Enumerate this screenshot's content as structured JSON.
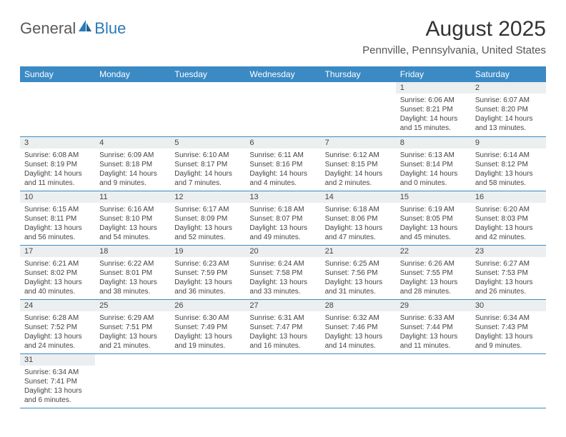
{
  "logo": {
    "general": "General",
    "blue": "Blue"
  },
  "title": "August 2025",
  "location": "Pennville, Pennsylvania, United States",
  "colors": {
    "header_bg": "#3b8ac4",
    "header_text": "#ffffff",
    "daynum_bg": "#eceff0",
    "row_border": "#3b8ac4",
    "text": "#444444",
    "logo_gray": "#5a5a5a",
    "logo_blue": "#2a7ab8"
  },
  "weekdays": [
    "Sunday",
    "Monday",
    "Tuesday",
    "Wednesday",
    "Thursday",
    "Friday",
    "Saturday"
  ],
  "weeks": [
    [
      null,
      null,
      null,
      null,
      null,
      {
        "d": "1",
        "sunrise": "6:06 AM",
        "sunset": "8:21 PM",
        "day1": "Daylight: 14 hours",
        "day2": "and 15 minutes."
      },
      {
        "d": "2",
        "sunrise": "6:07 AM",
        "sunset": "8:20 PM",
        "day1": "Daylight: 14 hours",
        "day2": "and 13 minutes."
      }
    ],
    [
      {
        "d": "3",
        "sunrise": "6:08 AM",
        "sunset": "8:19 PM",
        "day1": "Daylight: 14 hours",
        "day2": "and 11 minutes."
      },
      {
        "d": "4",
        "sunrise": "6:09 AM",
        "sunset": "8:18 PM",
        "day1": "Daylight: 14 hours",
        "day2": "and 9 minutes."
      },
      {
        "d": "5",
        "sunrise": "6:10 AM",
        "sunset": "8:17 PM",
        "day1": "Daylight: 14 hours",
        "day2": "and 7 minutes."
      },
      {
        "d": "6",
        "sunrise": "6:11 AM",
        "sunset": "8:16 PM",
        "day1": "Daylight: 14 hours",
        "day2": "and 4 minutes."
      },
      {
        "d": "7",
        "sunrise": "6:12 AM",
        "sunset": "8:15 PM",
        "day1": "Daylight: 14 hours",
        "day2": "and 2 minutes."
      },
      {
        "d": "8",
        "sunrise": "6:13 AM",
        "sunset": "8:14 PM",
        "day1": "Daylight: 14 hours",
        "day2": "and 0 minutes."
      },
      {
        "d": "9",
        "sunrise": "6:14 AM",
        "sunset": "8:12 PM",
        "day1": "Daylight: 13 hours",
        "day2": "and 58 minutes."
      }
    ],
    [
      {
        "d": "10",
        "sunrise": "6:15 AM",
        "sunset": "8:11 PM",
        "day1": "Daylight: 13 hours",
        "day2": "and 56 minutes."
      },
      {
        "d": "11",
        "sunrise": "6:16 AM",
        "sunset": "8:10 PM",
        "day1": "Daylight: 13 hours",
        "day2": "and 54 minutes."
      },
      {
        "d": "12",
        "sunrise": "6:17 AM",
        "sunset": "8:09 PM",
        "day1": "Daylight: 13 hours",
        "day2": "and 52 minutes."
      },
      {
        "d": "13",
        "sunrise": "6:18 AM",
        "sunset": "8:07 PM",
        "day1": "Daylight: 13 hours",
        "day2": "and 49 minutes."
      },
      {
        "d": "14",
        "sunrise": "6:18 AM",
        "sunset": "8:06 PM",
        "day1": "Daylight: 13 hours",
        "day2": "and 47 minutes."
      },
      {
        "d": "15",
        "sunrise": "6:19 AM",
        "sunset": "8:05 PM",
        "day1": "Daylight: 13 hours",
        "day2": "and 45 minutes."
      },
      {
        "d": "16",
        "sunrise": "6:20 AM",
        "sunset": "8:03 PM",
        "day1": "Daylight: 13 hours",
        "day2": "and 42 minutes."
      }
    ],
    [
      {
        "d": "17",
        "sunrise": "6:21 AM",
        "sunset": "8:02 PM",
        "day1": "Daylight: 13 hours",
        "day2": "and 40 minutes."
      },
      {
        "d": "18",
        "sunrise": "6:22 AM",
        "sunset": "8:01 PM",
        "day1": "Daylight: 13 hours",
        "day2": "and 38 minutes."
      },
      {
        "d": "19",
        "sunrise": "6:23 AM",
        "sunset": "7:59 PM",
        "day1": "Daylight: 13 hours",
        "day2": "and 36 minutes."
      },
      {
        "d": "20",
        "sunrise": "6:24 AM",
        "sunset": "7:58 PM",
        "day1": "Daylight: 13 hours",
        "day2": "and 33 minutes."
      },
      {
        "d": "21",
        "sunrise": "6:25 AM",
        "sunset": "7:56 PM",
        "day1": "Daylight: 13 hours",
        "day2": "and 31 minutes."
      },
      {
        "d": "22",
        "sunrise": "6:26 AM",
        "sunset": "7:55 PM",
        "day1": "Daylight: 13 hours",
        "day2": "and 28 minutes."
      },
      {
        "d": "23",
        "sunrise": "6:27 AM",
        "sunset": "7:53 PM",
        "day1": "Daylight: 13 hours",
        "day2": "and 26 minutes."
      }
    ],
    [
      {
        "d": "24",
        "sunrise": "6:28 AM",
        "sunset": "7:52 PM",
        "day1": "Daylight: 13 hours",
        "day2": "and 24 minutes."
      },
      {
        "d": "25",
        "sunrise": "6:29 AM",
        "sunset": "7:51 PM",
        "day1": "Daylight: 13 hours",
        "day2": "and 21 minutes."
      },
      {
        "d": "26",
        "sunrise": "6:30 AM",
        "sunset": "7:49 PM",
        "day1": "Daylight: 13 hours",
        "day2": "and 19 minutes."
      },
      {
        "d": "27",
        "sunrise": "6:31 AM",
        "sunset": "7:47 PM",
        "day1": "Daylight: 13 hours",
        "day2": "and 16 minutes."
      },
      {
        "d": "28",
        "sunrise": "6:32 AM",
        "sunset": "7:46 PM",
        "day1": "Daylight: 13 hours",
        "day2": "and 14 minutes."
      },
      {
        "d": "29",
        "sunrise": "6:33 AM",
        "sunset": "7:44 PM",
        "day1": "Daylight: 13 hours",
        "day2": "and 11 minutes."
      },
      {
        "d": "30",
        "sunrise": "6:34 AM",
        "sunset": "7:43 PM",
        "day1": "Daylight: 13 hours",
        "day2": "and 9 minutes."
      }
    ],
    [
      {
        "d": "31",
        "sunrise": "6:34 AM",
        "sunset": "7:41 PM",
        "day1": "Daylight: 13 hours",
        "day2": "and 6 minutes."
      },
      null,
      null,
      null,
      null,
      null,
      null
    ]
  ],
  "labels": {
    "sunrise": "Sunrise: ",
    "sunset": "Sunset: "
  }
}
